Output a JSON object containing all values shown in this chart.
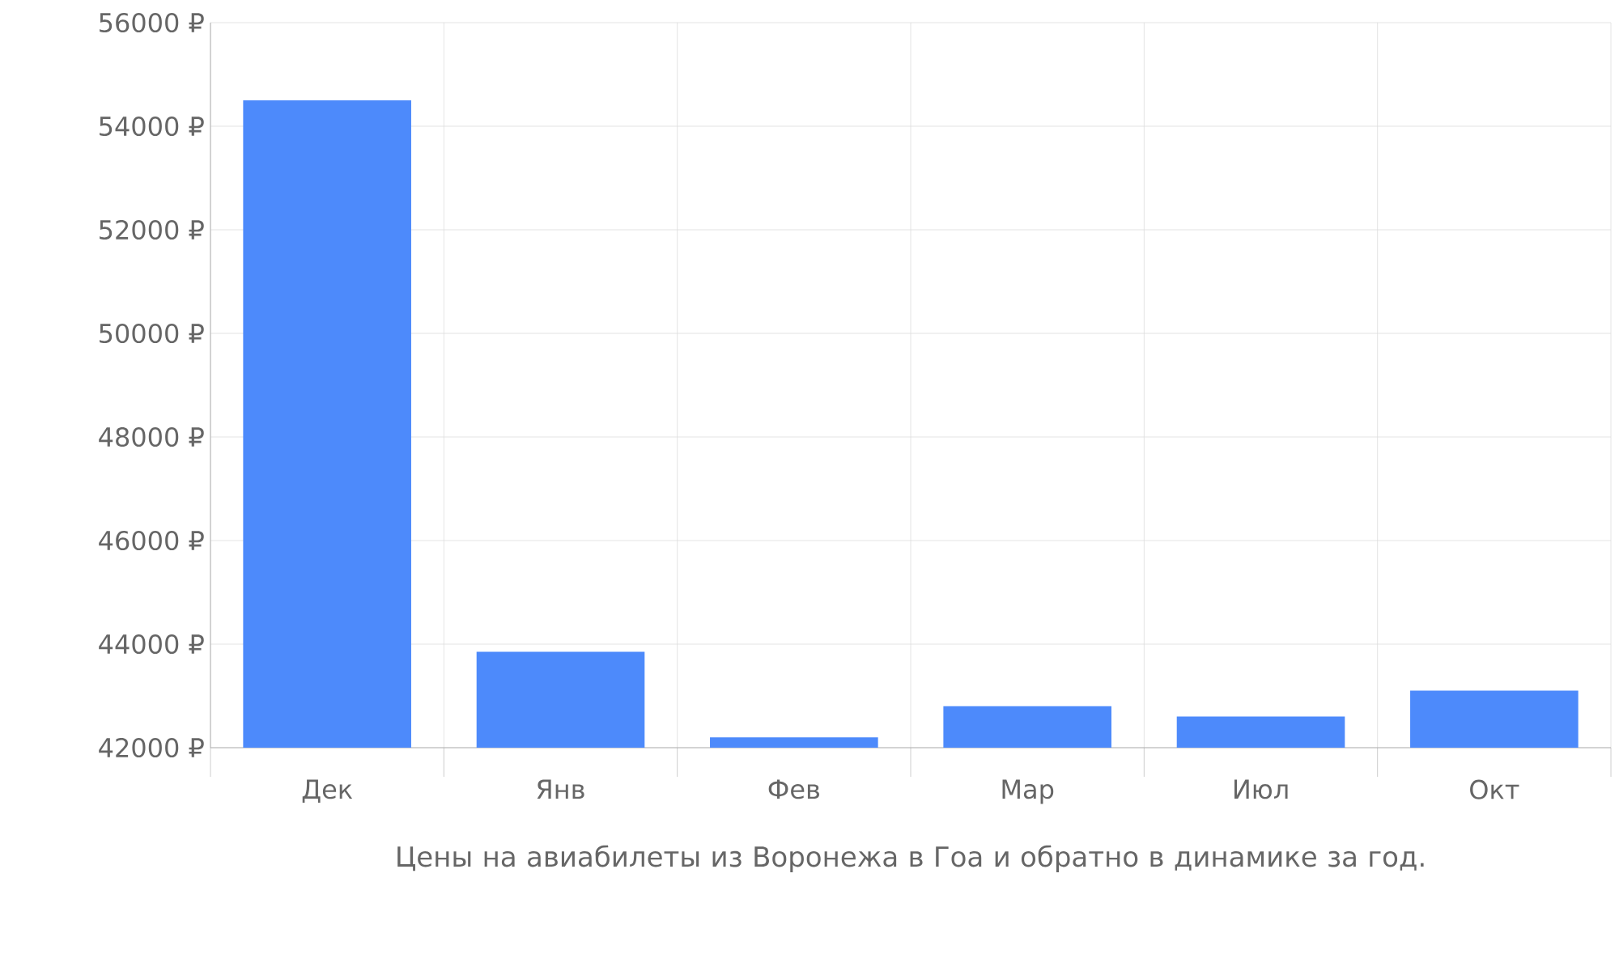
{
  "chart_data": {
    "type": "bar",
    "title": "Цены на авиабилеты из Воронежа в Гоа и обратно в динамике за год.",
    "categories": [
      "Дек",
      "Янв",
      "Фев",
      "Мар",
      "Июл",
      "Окт"
    ],
    "values": [
      54500,
      43850,
      42200,
      42800,
      42600,
      43100
    ],
    "color": "#4d8afb",
    "ylim": [
      42000,
      56000
    ],
    "yticks": [
      {
        "value": 42000,
        "label": "42000 ₽"
      },
      {
        "value": 44000,
        "label": "44000 ₽"
      },
      {
        "value": 46000,
        "label": "46000 ₽"
      },
      {
        "value": 48000,
        "label": "48000 ₽"
      },
      {
        "value": 50000,
        "label": "50000 ₽"
      },
      {
        "value": 52000,
        "label": "52000 ₽"
      },
      {
        "value": 54000,
        "label": "54000 ₽"
      },
      {
        "value": 56000,
        "label": "56000 ₽"
      }
    ],
    "grid": true
  }
}
